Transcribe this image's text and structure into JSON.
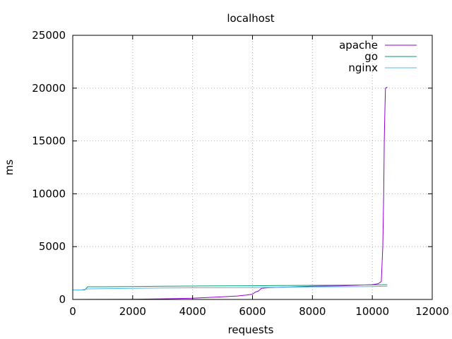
{
  "chart_data": {
    "type": "line",
    "title": "localhost",
    "xlabel": "requests",
    "ylabel": "ms",
    "xlim": [
      0,
      12000
    ],
    "ylim": [
      0,
      25000
    ],
    "xticks": [
      0,
      2000,
      4000,
      6000,
      8000,
      10000,
      12000
    ],
    "yticks": [
      0,
      5000,
      10000,
      15000,
      20000,
      25000
    ],
    "grid": true,
    "legend_position": "top-right",
    "series": [
      {
        "name": "apache",
        "color": "#9400d3",
        "points": [
          [
            0,
            0
          ],
          [
            2000,
            20
          ],
          [
            3000,
            60
          ],
          [
            4000,
            120
          ],
          [
            5000,
            250
          ],
          [
            5500,
            330
          ],
          [
            5800,
            420
          ],
          [
            6000,
            500
          ],
          [
            6100,
            700
          ],
          [
            6200,
            800
          ],
          [
            6300,
            1050
          ],
          [
            6500,
            1100
          ],
          [
            7000,
            1150
          ],
          [
            8000,
            1250
          ],
          [
            9000,
            1300
          ],
          [
            10000,
            1400
          ],
          [
            10200,
            1500
          ],
          [
            10300,
            1700
          ],
          [
            10350,
            5000
          ],
          [
            10380,
            10000
          ],
          [
            10400,
            15000
          ],
          [
            10420,
            18000
          ],
          [
            10440,
            20000
          ],
          [
            10500,
            20100
          ]
        ]
      },
      {
        "name": "go",
        "color": "#009e73",
        "points": [
          [
            0,
            900
          ],
          [
            400,
            900
          ],
          [
            500,
            1200
          ],
          [
            1000,
            1200
          ],
          [
            2000,
            1220
          ],
          [
            3000,
            1250
          ],
          [
            4000,
            1270
          ],
          [
            5000,
            1290
          ],
          [
            6000,
            1300
          ],
          [
            7000,
            1320
          ],
          [
            8000,
            1340
          ],
          [
            9000,
            1360
          ],
          [
            10000,
            1380
          ],
          [
            10500,
            1400
          ]
        ]
      },
      {
        "name": "nginx",
        "color": "#56b4e9",
        "points": [
          [
            0,
            900
          ],
          [
            300,
            900
          ],
          [
            400,
            950
          ],
          [
            500,
            1000
          ],
          [
            1000,
            1020
          ],
          [
            2000,
            1050
          ],
          [
            3000,
            1080
          ],
          [
            4000,
            1100
          ],
          [
            5000,
            1110
          ],
          [
            6000,
            1120
          ],
          [
            7000,
            1150
          ],
          [
            8000,
            1180
          ],
          [
            9000,
            1200
          ],
          [
            10000,
            1220
          ],
          [
            10500,
            1250
          ]
        ]
      }
    ]
  }
}
